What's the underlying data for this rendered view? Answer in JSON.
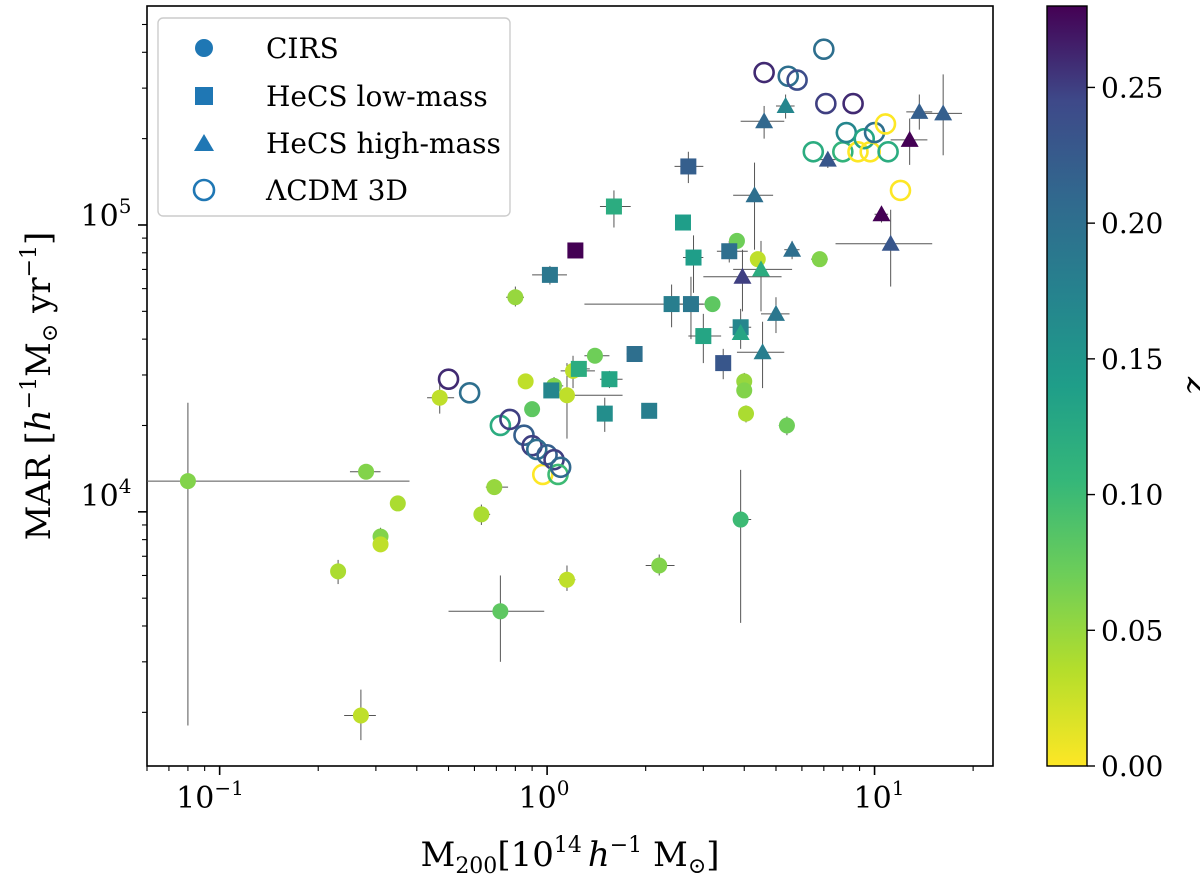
{
  "chart_data": {
    "type": "scatter",
    "xscale": "log",
    "yscale": "log",
    "xlim": [
      0.06,
      23
    ],
    "ylim": [
      1300,
      580000
    ],
    "xlabel": {
      "main": "M",
      "sub": "200",
      "rest": "[10",
      "sup": "14",
      "unit": " M",
      "close": "]",
      "h": "h",
      "hsup": "−1"
    },
    "ylabel": {
      "main": "MAR [",
      "h": "h",
      "sup1": "−1",
      "unit": "M",
      "sup2": "−1",
      "close": "]",
      "yr": " yr"
    },
    "xticks": [
      {
        "value": 0.1,
        "base": "10",
        "exp": "−1"
      },
      {
        "value": 1,
        "base": "10",
        "exp": "0"
      },
      {
        "value": 10,
        "base": "10",
        "exp": "1"
      }
    ],
    "yticks": [
      {
        "value": 10000,
        "base": "10",
        "exp": "4"
      },
      {
        "value": 100000,
        "base": "10",
        "exp": "5"
      }
    ],
    "colorbar": {
      "label": "z",
      "min": 0.0,
      "max": 0.28,
      "ticks": [
        "0.00",
        "0.05",
        "0.10",
        "0.15",
        "0.20",
        "0.25"
      ],
      "tick_values": [
        0.0,
        0.05,
        0.1,
        0.15,
        0.2,
        0.25
      ],
      "colormap": "viridis_r"
    },
    "legend": {
      "position": "top-left",
      "entries": [
        {
          "label": "CIRS",
          "marker": "circle"
        },
        {
          "label": "HeCS low-mass",
          "marker": "square"
        },
        {
          "label": "HeCS high-mass",
          "marker": "triangle"
        },
        {
          "label": "ΛCDM 3D",
          "marker": "open-circle"
        }
      ]
    },
    "series": [
      {
        "name": "CIRS",
        "marker": "circle",
        "points": [
          {
            "x": 0.08,
            "y": 12800,
            "z": 0.06,
            "xerr": [
              0.02,
              0.38
            ],
            "yerr": [
              1800,
              24000
            ]
          },
          {
            "x": 0.23,
            "y": 6200,
            "z": 0.04,
            "xerr": [
              0.22,
              0.24
            ],
            "yerr": [
              5600,
              6800
            ]
          },
          {
            "x": 0.27,
            "y": 1950,
            "z": 0.03,
            "xerr": [
              0.24,
              0.3
            ],
            "yerr": [
              1600,
              2400
            ]
          },
          {
            "x": 0.28,
            "y": 13800,
            "z": 0.06,
            "xerr": [
              0.25,
              0.31
            ],
            "yerr": [
              13000,
              14600
            ]
          },
          {
            "x": 0.31,
            "y": 8200,
            "z": 0.06,
            "xerr": [
              0.3,
              0.32
            ],
            "yerr": [
              7600,
              8800
            ]
          },
          {
            "x": 0.31,
            "y": 7700,
            "z": 0.03
          },
          {
            "x": 0.35,
            "y": 10700,
            "z": 0.04,
            "xerr": [
              0.34,
              0.36
            ],
            "yerr": [
              10300,
              11100
            ]
          },
          {
            "x": 0.47,
            "y": 25000,
            "z": 0.03,
            "xerr": [
              0.43,
              0.52
            ],
            "yerr": [
              22000,
              28000
            ]
          },
          {
            "x": 0.63,
            "y": 9800,
            "z": 0.04,
            "xerr": [
              0.6,
              0.67
            ],
            "yerr": [
              9000,
              10600
            ]
          },
          {
            "x": 0.69,
            "y": 12200,
            "z": 0.05,
            "xerr": [
              0.65,
              0.76
            ],
            "yerr": [
              11500,
              13000
            ]
          },
          {
            "x": 0.72,
            "y": 4500,
            "z": 0.08,
            "xerr": [
              0.5,
              0.98
            ],
            "yerr": [
              3000,
              6000
            ]
          },
          {
            "x": 0.8,
            "y": 56000,
            "z": 0.05,
            "xerr": [
              0.75,
              0.85
            ],
            "yerr": [
              52000,
              61000
            ]
          },
          {
            "x": 0.86,
            "y": 28500,
            "z": 0.03,
            "xerr": [
              0.82,
              0.9
            ],
            "yerr": [
              27000,
              30000
            ]
          },
          {
            "x": 0.9,
            "y": 22800,
            "z": 0.08
          },
          {
            "x": 1.05,
            "y": 27500,
            "z": 0.06,
            "xerr": [
              0.98,
              1.12
            ],
            "yerr": [
              25500,
              29500
            ]
          },
          {
            "x": 1.15,
            "y": 25500,
            "z": 0.03,
            "xerr": [
              1.0,
              1.7
            ],
            "yerr": [
              18000,
              33000
            ]
          },
          {
            "x": 1.15,
            "y": 5800,
            "z": 0.03,
            "xerr": [
              1.08,
              1.22
            ],
            "yerr": [
              5300,
              6500
            ]
          },
          {
            "x": 1.2,
            "y": 31000,
            "z": 0.03,
            "xerr": [
              1.1,
              1.4
            ],
            "yerr": [
              27000,
              35000
            ]
          },
          {
            "x": 1.4,
            "y": 35000,
            "z": 0.07,
            "xerr": [
              1.3,
              1.55
            ],
            "yerr": [
              33000,
              37000
            ]
          },
          {
            "x": 2.2,
            "y": 6500,
            "z": 0.06,
            "xerr": [
              2.0,
              2.45
            ],
            "yerr": [
              6000,
              7100
            ]
          },
          {
            "x": 3.2,
            "y": 53000,
            "z": 0.08
          },
          {
            "x": 3.8,
            "y": 88000,
            "z": 0.07
          },
          {
            "x": 3.9,
            "y": 9400,
            "z": 0.1,
            "xerr": [
              3.7,
              4.2
            ],
            "yerr": [
              4100,
              14000
            ]
          },
          {
            "x": 4.0,
            "y": 28500,
            "z": 0.05,
            "xerr": [
              3.9,
              4.1
            ],
            "yerr": [
              26500,
              30500
            ]
          },
          {
            "x": 4.0,
            "y": 26500,
            "z": 0.06
          },
          {
            "x": 4.05,
            "y": 22000,
            "z": 0.04,
            "xerr": [
              3.95,
              4.15
            ],
            "yerr": [
              20500,
              23500
            ]
          },
          {
            "x": 4.4,
            "y": 76000,
            "z": 0.03
          },
          {
            "x": 5.4,
            "y": 20000,
            "z": 0.07,
            "xerr": [
              5.1,
              5.7
            ],
            "yerr": [
              18500,
              21500
            ]
          },
          {
            "x": 6.8,
            "y": 76000,
            "z": 0.06,
            "xerr": [
              6.4,
              7.2
            ],
            "yerr": [
              73000,
              79000
            ]
          }
        ]
      },
      {
        "name": "HeCS low-mass",
        "marker": "square",
        "points": [
          {
            "x": 1.02,
            "y": 67000,
            "z": 0.19,
            "xerr": [
              0.9,
              1.15
            ],
            "yerr": [
              62000,
              72000
            ]
          },
          {
            "x": 1.03,
            "y": 26500,
            "z": 0.17
          },
          {
            "x": 1.22,
            "y": 81500,
            "z": 0.28
          },
          {
            "x": 1.25,
            "y": 31500,
            "z": 0.12,
            "xerr": [
              1.15,
              1.35
            ],
            "yerr": [
              29500,
              33500
            ]
          },
          {
            "x": 1.5,
            "y": 22000,
            "z": 0.16,
            "xerr": [
              1.42,
              1.58
            ],
            "yerr": [
              19000,
              25000
            ]
          },
          {
            "x": 1.55,
            "y": 29000,
            "z": 0.13,
            "xerr": [
              1.45,
              1.7
            ],
            "yerr": [
              27000,
              31000
            ]
          },
          {
            "x": 1.6,
            "y": 116000,
            "z": 0.12,
            "xerr": [
              1.45,
              1.8
            ],
            "yerr": [
              98000,
              132000
            ]
          },
          {
            "x": 1.85,
            "y": 35500,
            "z": 0.2,
            "xerr": [
              1.75,
              1.95
            ],
            "yerr": [
              34000,
              37000
            ]
          },
          {
            "x": 2.05,
            "y": 22500,
            "z": 0.18
          },
          {
            "x": 2.4,
            "y": 53000,
            "z": 0.18,
            "xerr": [
              1.3,
              3.0
            ],
            "yerr": [
              44000,
              62000
            ]
          },
          {
            "x": 2.6,
            "y": 102000,
            "z": 0.14,
            "xerr": [
              2.5,
              2.7
            ],
            "yerr": [
              99000,
              105000
            ]
          },
          {
            "x": 2.7,
            "y": 160000,
            "z": 0.22,
            "xerr": [
              2.45,
              3.0
            ],
            "yerr": [
              140000,
              180000
            ]
          },
          {
            "x": 2.75,
            "y": 53000,
            "z": 0.19,
            "xerr": [
              2.35,
              3.2
            ],
            "yerr": [
              40000,
              66000
            ]
          },
          {
            "x": 2.8,
            "y": 77000,
            "z": 0.14,
            "xerr": [
              2.6,
              3.0
            ],
            "yerr": [
              58000,
              92000
            ]
          },
          {
            "x": 3.0,
            "y": 41000,
            "z": 0.13,
            "xerr": [
              2.7,
              3.4
            ],
            "yerr": [
              33000,
              49000
            ]
          },
          {
            "x": 3.45,
            "y": 33000,
            "z": 0.23,
            "xerr": [
              3.3,
              3.6
            ],
            "yerr": [
              29000,
              37000
            ]
          },
          {
            "x": 3.6,
            "y": 81000,
            "z": 0.2,
            "xerr": [
              3.3,
              4.1
            ],
            "yerr": [
              74000,
              88000
            ]
          },
          {
            "x": 3.9,
            "y": 44000,
            "z": 0.17,
            "xerr": [
              3.6,
              4.2
            ],
            "yerr": [
              37000,
              51000
            ]
          }
        ]
      },
      {
        "name": "HeCS high-mass",
        "marker": "triangle",
        "points": [
          {
            "x": 3.9,
            "y": 42000,
            "z": 0.13
          },
          {
            "x": 3.95,
            "y": 66000,
            "z": 0.25,
            "xerr": [
              3.0,
              5.2
            ],
            "yerr": [
              50000,
              82000
            ]
          },
          {
            "x": 4.3,
            "y": 127000,
            "z": 0.2,
            "xerr": [
              3.7,
              4.9
            ],
            "yerr": [
              82000,
              165000
            ]
          },
          {
            "x": 4.5,
            "y": 70000,
            "z": 0.12,
            "xerr": [
              3.7,
              5.6
            ],
            "yerr": [
              50000,
              88000
            ]
          },
          {
            "x": 4.55,
            "y": 36000,
            "z": 0.18,
            "xerr": [
              3.8,
              5.3
            ],
            "yerr": [
              27000,
              46000
            ]
          },
          {
            "x": 4.6,
            "y": 230000,
            "z": 0.21,
            "xerr": [
              3.9,
              5.3
            ],
            "yerr": [
              200000,
              260000
            ]
          },
          {
            "x": 5.0,
            "y": 49000,
            "z": 0.19,
            "xerr": [
              4.5,
              5.5
            ],
            "yerr": [
              42000,
              56000
            ]
          },
          {
            "x": 5.35,
            "y": 260000,
            "z": 0.17,
            "xerr": [
              5.0,
              5.7
            ],
            "yerr": [
              235000,
              285000
            ]
          },
          {
            "x": 5.6,
            "y": 82000,
            "z": 0.2,
            "xerr": [
              5.3,
              5.9
            ],
            "yerr": [
              76000,
              88000
            ]
          },
          {
            "x": 7.2,
            "y": 169000,
            "z": 0.23,
            "xerr": [
              6.8,
              7.6
            ],
            "yerr": [
              158000,
              180000
            ]
          },
          {
            "x": 10.5,
            "y": 109000,
            "z": 0.28,
            "xerr": [
              10.0,
              11.0
            ],
            "yerr": [
              102000,
              116000
            ]
          },
          {
            "x": 11.2,
            "y": 86000,
            "z": 0.23,
            "xerr": [
              7.6,
              15.0
            ],
            "yerr": [
              61000,
              113000
            ]
          },
          {
            "x": 12.8,
            "y": 198000,
            "z": 0.28,
            "xerr": [
              11.2,
              14.5
            ],
            "yerr": [
              162000,
              235000
            ]
          },
          {
            "x": 13.7,
            "y": 248000,
            "z": 0.22,
            "xerr": [
              12.5,
              15.0
            ],
            "yerr": [
              215000,
              285000
            ]
          },
          {
            "x": 16.2,
            "y": 245000,
            "z": 0.22,
            "xerr": [
              13.8,
              18.5
            ],
            "yerr": [
              175000,
              335000
            ]
          }
        ]
      },
      {
        "name": "ΛCDM 3D",
        "marker": "open-circle",
        "points": [
          {
            "x": 0.5,
            "y": 29000,
            "z": 0.26
          },
          {
            "x": 0.58,
            "y": 26000,
            "z": 0.2
          },
          {
            "x": 0.72,
            "y": 20000,
            "z": 0.12
          },
          {
            "x": 0.77,
            "y": 21000,
            "z": 0.25
          },
          {
            "x": 0.85,
            "y": 18500,
            "z": 0.22
          },
          {
            "x": 0.9,
            "y": 17000,
            "z": 0.25
          },
          {
            "x": 0.93,
            "y": 16500,
            "z": 0.2
          },
          {
            "x": 0.97,
            "y": 13500,
            "z": 0.0
          },
          {
            "x": 1.0,
            "y": 15800,
            "z": 0.22
          },
          {
            "x": 1.05,
            "y": 15200,
            "z": 0.25
          },
          {
            "x": 1.08,
            "y": 13500,
            "z": 0.1
          },
          {
            "x": 1.1,
            "y": 14300,
            "z": 0.21
          },
          {
            "x": 4.6,
            "y": 340000,
            "z": 0.26
          },
          {
            "x": 5.45,
            "y": 330000,
            "z": 0.2
          },
          {
            "x": 5.8,
            "y": 320000,
            "z": 0.24
          },
          {
            "x": 6.5,
            "y": 180000,
            "z": 0.12
          },
          {
            "x": 7.0,
            "y": 410000,
            "z": 0.2
          },
          {
            "x": 7.1,
            "y": 265000,
            "z": 0.25
          },
          {
            "x": 8.0,
            "y": 180000,
            "z": 0.11
          },
          {
            "x": 8.2,
            "y": 210000,
            "z": 0.17
          },
          {
            "x": 8.6,
            "y": 265000,
            "z": 0.26
          },
          {
            "x": 8.9,
            "y": 180000,
            "z": 0.0
          },
          {
            "x": 9.3,
            "y": 200000,
            "z": 0.13
          },
          {
            "x": 9.7,
            "y": 180000,
            "z": 0.0
          },
          {
            "x": 10.0,
            "y": 210000,
            "z": 0.2
          },
          {
            "x": 10.8,
            "y": 225000,
            "z": 0.0
          },
          {
            "x": 11.0,
            "y": 180000,
            "z": 0.12
          },
          {
            "x": 12.0,
            "y": 132000,
            "z": 0.0
          }
        ]
      }
    ]
  },
  "colors": {
    "legend_marker": "#1f77b4",
    "errorbar": "#555555",
    "axis": "#000000"
  }
}
